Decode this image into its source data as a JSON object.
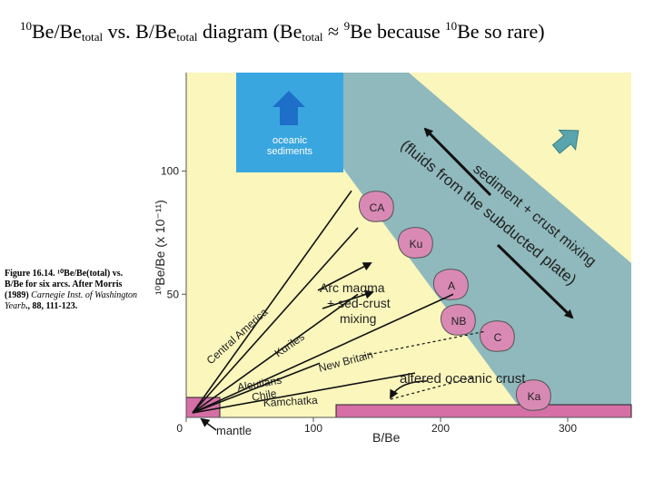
{
  "title": {
    "p1_base": "Be/Be",
    "p1_sup": "10",
    "p1_sub": "total",
    "p2": " vs. B/Be",
    "p2_sub": "total",
    "p3": " diagram   (Be",
    "p3_sub": "total",
    "p4": " ≈ ",
    "p4_sup": "9",
    "p5": "Be because ",
    "p5_sup": "10",
    "p6": "Be so rare)"
  },
  "caption": {
    "line1": "Figure 16.14. ¹⁰Be/Be(total) vs. B/Be for six arcs. After Morris (1989) ",
    "journal": "Carnegie Inst. of Washington Yearb",
    "line2": "., 88, 111-123."
  },
  "chart_data": {
    "type": "diagram",
    "xlabel": "B/Be",
    "ylabel": "¹⁰Be/Be (x 10⁻¹¹)",
    "x_ticks": [
      "0",
      "100",
      "200",
      "300"
    ],
    "y_ticks": [
      "50",
      "100"
    ],
    "xlim": [
      0,
      350
    ],
    "ylim": [
      0,
      140
    ],
    "regions": {
      "oceanic_sediments": "oceanic\nsediments",
      "mantle": "mantle",
      "altered_oceanic_crust": "altered oceanic crust",
      "fluids_band": "(fluids from the subducted plate)",
      "mixing_band": "sediment + crust mixing",
      "arc_magma": [
        "Arc magma",
        "+ sed-crust",
        "mixing"
      ]
    },
    "sample_fields": [
      "CA",
      "Ku",
      "A",
      "NB",
      "C",
      "Ka"
    ],
    "arc_lines": [
      {
        "name": "Central America",
        "end": [
          130,
          92
        ]
      },
      {
        "name": "Kuriles",
        "end": [
          135,
          77
        ]
      },
      {
        "name": "New Britain",
        "end": [
          210,
          50
        ]
      },
      {
        "name": "Aleutians",
        "end": [
          135,
          50
        ]
      },
      {
        "name": "Chile",
        "end": [
          105,
          22
        ]
      },
      {
        "name": "Kamchatka",
        "end": [
          180,
          18
        ]
      }
    ],
    "colors": {
      "background": "#faf6bc",
      "band": "#8fb9bd",
      "sediment_box": "#3aa6e0",
      "pink": "#d56fa6",
      "arrow_blue": "#1e6fc8",
      "arrow_teal": "#5aa5ad"
    }
  }
}
